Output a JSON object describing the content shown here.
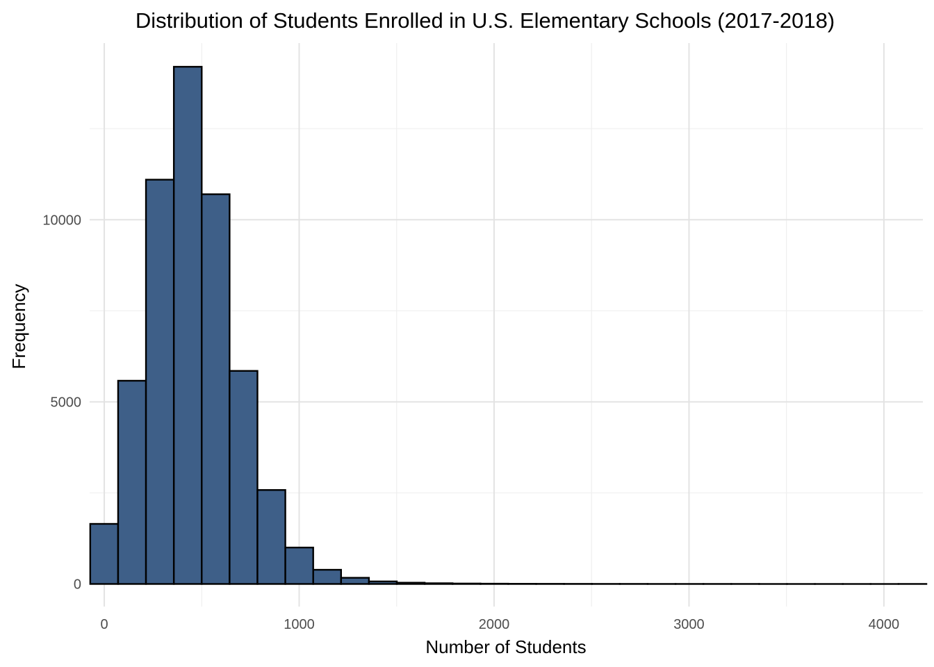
{
  "chart_data": {
    "type": "bar",
    "title": "Distribution of Students Enrolled in U.S. Elementary Schools (2017-2018)",
    "xlabel": "Number of Students",
    "ylabel": "Frequency",
    "xlim": [
      -75,
      4200
    ],
    "ylim": [
      -620,
      14850
    ],
    "x_ticks": [
      0,
      1000,
      2000,
      3000,
      4000
    ],
    "x_tick_labels": [
      "0",
      "1000",
      "2000",
      "3000",
      "4000"
    ],
    "y_ticks": [
      0,
      5000,
      10000
    ],
    "y_tick_labels": [
      "0",
      "5000",
      "10000"
    ],
    "grid": true,
    "bar_fill": "#3e5f88",
    "bar_outline": "#000000",
    "bin_width": 143,
    "bins": [
      {
        "x0": -72,
        "x1": 71,
        "count": 1650
      },
      {
        "x0": 71,
        "x1": 214,
        "count": 5580
      },
      {
        "x0": 214,
        "x1": 357,
        "count": 11100
      },
      {
        "x0": 357,
        "x1": 500,
        "count": 14200
      },
      {
        "x0": 500,
        "x1": 643,
        "count": 10700
      },
      {
        "x0": 643,
        "x1": 786,
        "count": 5850
      },
      {
        "x0": 786,
        "x1": 929,
        "count": 2580
      },
      {
        "x0": 929,
        "x1": 1072,
        "count": 1000
      },
      {
        "x0": 1072,
        "x1": 1215,
        "count": 390
      },
      {
        "x0": 1215,
        "x1": 1358,
        "count": 170
      },
      {
        "x0": 1358,
        "x1": 1501,
        "count": 70
      },
      {
        "x0": 1501,
        "x1": 1644,
        "count": 35
      },
      {
        "x0": 1644,
        "x1": 1787,
        "count": 20
      },
      {
        "x0": 1787,
        "x1": 1930,
        "count": 12
      },
      {
        "x0": 1930,
        "x1": 2073,
        "count": 8
      },
      {
        "x0": 2073,
        "x1": 2216,
        "count": 5
      },
      {
        "x0": 2216,
        "x1": 2359,
        "count": 4
      },
      {
        "x0": 2359,
        "x1": 2502,
        "count": 3
      },
      {
        "x0": 2502,
        "x1": 2645,
        "count": 2
      },
      {
        "x0": 2645,
        "x1": 2788,
        "count": 2
      },
      {
        "x0": 2788,
        "x1": 2931,
        "count": 1
      },
      {
        "x0": 2931,
        "x1": 3074,
        "count": 1
      },
      {
        "x0": 3074,
        "x1": 3217,
        "count": 1
      },
      {
        "x0": 3217,
        "x1": 3360,
        "count": 1
      },
      {
        "x0": 3360,
        "x1": 3503,
        "count": 0
      },
      {
        "x0": 3503,
        "x1": 3646,
        "count": 0
      },
      {
        "x0": 3646,
        "x1": 3789,
        "count": 0
      },
      {
        "x0": 3789,
        "x1": 3932,
        "count": 0
      },
      {
        "x0": 3932,
        "x1": 4075,
        "count": 0
      },
      {
        "x0": 4075,
        "x1": 4218,
        "count": 1
      }
    ]
  }
}
